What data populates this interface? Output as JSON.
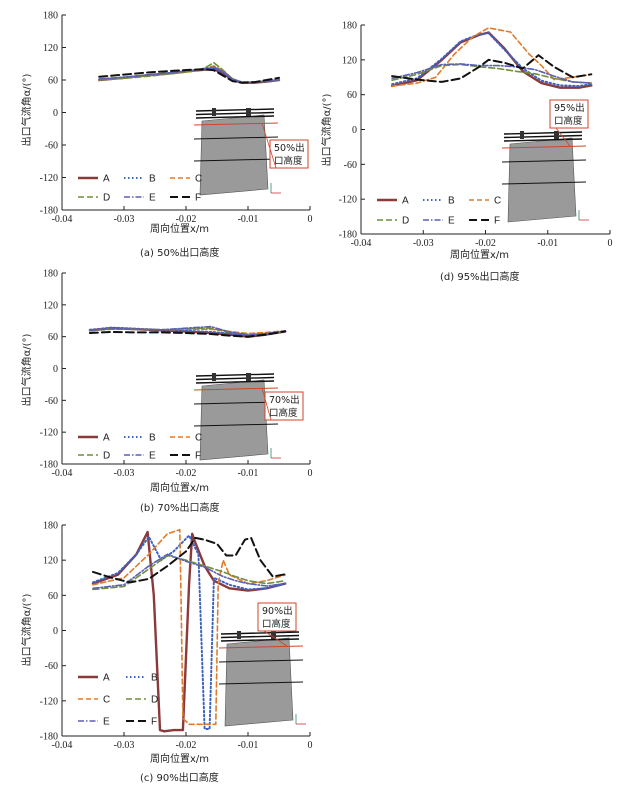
{
  "chart_data": [
    {
      "id": "a",
      "type": "line",
      "caption": "(a) 50%出口高度",
      "xlabel": "周向位置x/m",
      "ylabel": "出口气流角α/(°)",
      "xlim": [
        -0.04,
        0
      ],
      "ylim": [
        -180,
        180
      ],
      "xticks": [
        "-0.04",
        "-0.03",
        "-0.02",
        "-0.01",
        "0"
      ],
      "yticks": [
        "180",
        "120",
        "60",
        "0",
        "-60",
        "-120",
        "-180"
      ],
      "annotation": [
        "50%出",
        "口高度"
      ],
      "legend": [
        "A",
        "B",
        "C",
        "D",
        "E",
        "F"
      ],
      "series": [
        {
          "name": "A",
          "x": [
            -0.034,
            -0.03,
            -0.026,
            -0.022,
            -0.019,
            -0.017,
            -0.0155,
            -0.014,
            -0.0125,
            -0.011,
            -0.009,
            -0.007,
            -0.005
          ],
          "y": [
            60,
            64,
            69,
            73,
            77,
            79,
            80,
            72,
            60,
            55,
            55,
            57,
            60
          ]
        },
        {
          "name": "B",
          "x": [
            -0.034,
            -0.03,
            -0.026,
            -0.022,
            -0.019,
            -0.017,
            -0.0155,
            -0.014,
            -0.0125,
            -0.011,
            -0.009,
            -0.007,
            -0.005
          ],
          "y": [
            61,
            65,
            69,
            73,
            77,
            80,
            82,
            74,
            61,
            56,
            56,
            58,
            60
          ]
        },
        {
          "name": "C",
          "x": [
            -0.034,
            -0.03,
            -0.026,
            -0.022,
            -0.019,
            -0.017,
            -0.0155,
            -0.014,
            -0.0125,
            -0.011,
            -0.009,
            -0.007,
            -0.005
          ],
          "y": [
            60,
            64,
            68,
            72,
            76,
            81,
            86,
            77,
            62,
            56,
            56,
            58,
            61
          ]
        },
        {
          "name": "D",
          "x": [
            -0.034,
            -0.03,
            -0.026,
            -0.022,
            -0.019,
            -0.017,
            -0.0155,
            -0.014,
            -0.0125,
            -0.011,
            -0.009,
            -0.007,
            -0.005
          ],
          "y": [
            60,
            63,
            67,
            72,
            76,
            82,
            92,
            78,
            62,
            56,
            56,
            58,
            60
          ]
        },
        {
          "name": "E",
          "x": [
            -0.034,
            -0.03,
            -0.026,
            -0.022,
            -0.019,
            -0.017,
            -0.0155,
            -0.014,
            -0.0125,
            -0.011,
            -0.009,
            -0.007,
            -0.005
          ],
          "y": [
            62,
            65,
            69,
            74,
            78,
            81,
            84,
            75,
            62,
            56,
            56,
            58,
            61
          ]
        },
        {
          "name": "F",
          "x": [
            -0.034,
            -0.03,
            -0.026,
            -0.022,
            -0.019,
            -0.017,
            -0.0155,
            -0.014,
            -0.0125,
            -0.011,
            -0.009,
            -0.007,
            -0.005
          ],
          "y": [
            66,
            70,
            74,
            77,
            79,
            80,
            78,
            68,
            58,
            55,
            56,
            60,
            64
          ]
        }
      ]
    },
    {
      "id": "b",
      "type": "line",
      "caption": "(b) 70%出口高度",
      "xlabel": "周向位置x/m",
      "ylabel": "出口气流角α/(°)",
      "xlim": [
        -0.04,
        0
      ],
      "ylim": [
        -180,
        180
      ],
      "xticks": [
        "-0.04",
        "-0.03",
        "-0.02",
        "-0.01",
        "0"
      ],
      "yticks": [
        "180",
        "120",
        "60",
        "0",
        "-60",
        "-120",
        "-180"
      ],
      "annotation": [
        "70%出",
        "口高度"
      ],
      "legend": [
        "A",
        "B",
        "C",
        "D",
        "E",
        "F"
      ],
      "series": [
        {
          "name": "A",
          "x": [
            -0.0355,
            -0.032,
            -0.028,
            -0.024,
            -0.02,
            -0.016,
            -0.013,
            -0.01,
            -0.007,
            -0.004
          ],
          "y": [
            72,
            76,
            74,
            72,
            70,
            67,
            64,
            60,
            64,
            70
          ]
        },
        {
          "name": "B",
          "x": [
            -0.0355,
            -0.032,
            -0.028,
            -0.024,
            -0.02,
            -0.016,
            -0.013,
            -0.01,
            -0.007,
            -0.004
          ],
          "y": [
            73,
            77,
            75,
            73,
            71,
            69,
            66,
            62,
            65,
            70
          ]
        },
        {
          "name": "C",
          "x": [
            -0.0355,
            -0.032,
            -0.028,
            -0.024,
            -0.02,
            -0.016,
            -0.013,
            -0.01,
            -0.007,
            -0.004
          ],
          "y": [
            72,
            75,
            74,
            73,
            74,
            74,
            70,
            66,
            68,
            71
          ]
        },
        {
          "name": "D",
          "x": [
            -0.0355,
            -0.032,
            -0.028,
            -0.024,
            -0.02,
            -0.016,
            -0.013,
            -0.01,
            -0.007,
            -0.004
          ],
          "y": [
            71,
            74,
            74,
            73,
            75,
            76,
            68,
            64,
            66,
            70
          ]
        },
        {
          "name": "E",
          "x": [
            -0.0355,
            -0.032,
            -0.028,
            -0.024,
            -0.02,
            -0.016,
            -0.013,
            -0.01,
            -0.007,
            -0.004
          ],
          "y": [
            72,
            75,
            74,
            73,
            76,
            79,
            69,
            63,
            66,
            71
          ]
        },
        {
          "name": "F",
          "x": [
            -0.0355,
            -0.032,
            -0.028,
            -0.024,
            -0.02,
            -0.016,
            -0.013,
            -0.01,
            -0.007,
            -0.004
          ],
          "y": [
            67,
            69,
            68,
            68,
            67,
            65,
            62,
            60,
            64,
            70
          ]
        }
      ]
    },
    {
      "id": "c",
      "type": "line",
      "caption": "(c) 90%出口高度",
      "xlabel": "周向位置x/m",
      "ylabel": "出口气流角α/(°)",
      "xlim": [
        -0.04,
        0
      ],
      "ylim": [
        -180,
        180
      ],
      "xticks": [
        "-0.04",
        "-0.03",
        "-0.02",
        "-0.01",
        "0"
      ],
      "yticks": [
        "180",
        "120",
        "60",
        "0",
        "-60",
        "-120",
        "-180"
      ],
      "annotation": [
        "90%出",
        "口高度"
      ],
      "legend": [
        "A",
        "B",
        "C",
        "D",
        "E",
        "F"
      ],
      "series": [
        {
          "name": "A",
          "x": [
            -0.035,
            -0.031,
            -0.028,
            -0.0262,
            -0.0252,
            -0.0242,
            -0.0235,
            -0.022,
            -0.0205,
            -0.0195,
            -0.019,
            -0.0185,
            -0.017,
            -0.0155,
            -0.013,
            -0.01,
            -0.007,
            -0.004
          ],
          "y": [
            80,
            95,
            130,
            168,
            60,
            -170,
            -172,
            -170,
            -170,
            80,
            165,
            150,
            110,
            85,
            72,
            68,
            72,
            80
          ]
        },
        {
          "name": "B",
          "x": [
            -0.035,
            -0.031,
            -0.028,
            -0.026,
            -0.025,
            -0.024,
            -0.022,
            -0.0195,
            -0.018,
            -0.017,
            -0.0162,
            -0.0155,
            -0.013,
            -0.01,
            -0.007,
            -0.004
          ],
          "y": [
            82,
            98,
            130,
            160,
            140,
            120,
            135,
            162,
            130,
            -168,
            -168,
            90,
            78,
            70,
            72,
            80
          ]
        },
        {
          "name": "C",
          "x": [
            -0.035,
            -0.03,
            -0.026,
            -0.023,
            -0.021,
            -0.0208,
            -0.0205,
            -0.0195,
            -0.0175,
            -0.0152,
            -0.0148,
            -0.014,
            -0.013,
            -0.01,
            -0.007,
            -0.004
          ],
          "y": [
            78,
            90,
            130,
            165,
            172,
            60,
            -150,
            -160,
            -160,
            -160,
            80,
            120,
            95,
            80,
            85,
            95
          ]
        },
        {
          "name": "D",
          "x": [
            -0.035,
            -0.03,
            -0.026,
            -0.023,
            -0.02,
            -0.017,
            -0.014,
            -0.012,
            -0.01,
            -0.007,
            -0.004
          ],
          "y": [
            70,
            75,
            105,
            128,
            120,
            110,
            100,
            92,
            85,
            80,
            85
          ]
        },
        {
          "name": "E",
          "x": [
            -0.035,
            -0.03,
            -0.026,
            -0.023,
            -0.02,
            -0.017,
            -0.014,
            -0.012,
            -0.01,
            -0.007,
            -0.004
          ],
          "y": [
            72,
            78,
            110,
            130,
            118,
            108,
            92,
            85,
            80,
            76,
            80
          ]
        },
        {
          "name": "F",
          "x": [
            -0.035,
            -0.032,
            -0.029,
            -0.026,
            -0.023,
            -0.02,
            -0.0185,
            -0.017,
            -0.015,
            -0.0135,
            -0.012,
            -0.0105,
            -0.0095,
            -0.008,
            -0.006,
            -0.004
          ],
          "y": [
            100,
            90,
            82,
            88,
            110,
            135,
            158,
            155,
            148,
            128,
            128,
            155,
            158,
            120,
            92,
            96
          ]
        }
      ]
    },
    {
      "id": "d",
      "type": "line",
      "caption": "(d) 95%出口高度",
      "xlabel": "周向位置x/m",
      "ylabel": "出口气流角α/(°)",
      "xlim": [
        -0.04,
        0
      ],
      "ylim": [
        -180,
        180
      ],
      "xticks": [
        "-0.04",
        "-0.03",
        "-0.02",
        "-0.01",
        "0"
      ],
      "yticks": [
        "180",
        "120",
        "60",
        "0",
        "-60",
        "-120",
        "-180"
      ],
      "annotation": [
        "95%出",
        "口高度"
      ],
      "legend": [
        "A",
        "B",
        "C",
        "D",
        "E",
        "F"
      ],
      "series": [
        {
          "name": "A",
          "x": [
            -0.035,
            -0.031,
            -0.027,
            -0.024,
            -0.021,
            -0.0195,
            -0.017,
            -0.014,
            -0.011,
            -0.008,
            -0.005,
            -0.003
          ],
          "y": [
            75,
            85,
            120,
            150,
            163,
            167,
            140,
            100,
            80,
            72,
            72,
            76
          ]
        },
        {
          "name": "B",
          "x": [
            -0.035,
            -0.031,
            -0.027,
            -0.024,
            -0.021,
            -0.0195,
            -0.017,
            -0.014,
            -0.011,
            -0.008,
            -0.005,
            -0.003
          ],
          "y": [
            78,
            88,
            122,
            152,
            164,
            166,
            138,
            105,
            84,
            76,
            75,
            78
          ]
        },
        {
          "name": "C",
          "x": [
            -0.035,
            -0.031,
            -0.028,
            -0.025,
            -0.022,
            -0.0195,
            -0.016,
            -0.013,
            -0.011,
            -0.009,
            -0.006,
            -0.003
          ],
          "y": [
            75,
            80,
            90,
            130,
            160,
            175,
            168,
            130,
            110,
            86,
            90,
            95
          ]
        },
        {
          "name": "D",
          "x": [
            -0.035,
            -0.031,
            -0.027,
            -0.024,
            -0.021,
            -0.018,
            -0.015,
            -0.012,
            -0.009,
            -0.006,
            -0.003
          ],
          "y": [
            85,
            95,
            110,
            112,
            108,
            105,
            100,
            96,
            88,
            82,
            80
          ]
        },
        {
          "name": "E",
          "x": [
            -0.035,
            -0.031,
            -0.027,
            -0.024,
            -0.021,
            -0.018,
            -0.015,
            -0.012,
            -0.009,
            -0.006,
            -0.003
          ],
          "y": [
            88,
            98,
            112,
            113,
            110,
            110,
            108,
            103,
            92,
            82,
            80
          ]
        },
        {
          "name": "F",
          "x": [
            -0.035,
            -0.031,
            -0.027,
            -0.024,
            -0.021,
            -0.0195,
            -0.017,
            -0.014,
            -0.0115,
            -0.009,
            -0.006,
            -0.003
          ],
          "y": [
            92,
            86,
            82,
            88,
            108,
            120,
            115,
            105,
            128,
            108,
            90,
            95
          ]
        }
      ]
    }
  ]
}
